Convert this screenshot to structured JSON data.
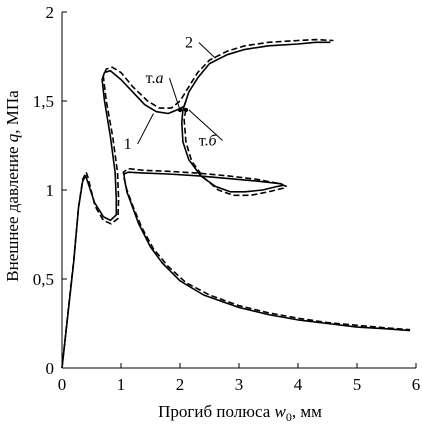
{
  "chart_data": {
    "type": "line",
    "title": "",
    "xlabel_main": "Прогиб полюса ",
    "xlabel_var": "w",
    "xlabel_sub": "0",
    "xlabel_unit": ", мм",
    "ylabel_main": "Внешнее давление ",
    "ylabel_var": "q",
    "ylabel_unit": ", МПа",
    "xlim": [
      0,
      6
    ],
    "ylim": [
      0,
      2
    ],
    "x_ticks": [
      {
        "value": 0,
        "label": "0"
      },
      {
        "value": 1,
        "label": "1"
      },
      {
        "value": 2,
        "label": "2"
      },
      {
        "value": 3,
        "label": "3"
      },
      {
        "value": 4,
        "label": "4"
      },
      {
        "value": 5,
        "label": "5"
      },
      {
        "value": 6,
        "label": "6"
      }
    ],
    "y_ticks": [
      {
        "value": 0,
        "label": "0"
      },
      {
        "value": 0.5,
        "label": "0,5"
      },
      {
        "value": 1,
        "label": "1"
      },
      {
        "value": 1.5,
        "label": "1,5"
      },
      {
        "value": 2,
        "label": "2"
      }
    ],
    "grid": false,
    "series": [
      {
        "name": "1",
        "style": "solid",
        "color": "#000000",
        "points": [
          [
            0,
            0
          ],
          [
            0.1,
            0.3
          ],
          [
            0.2,
            0.6
          ],
          [
            0.28,
            0.9
          ],
          [
            0.35,
            1.05
          ],
          [
            0.4,
            1.08
          ],
          [
            0.42,
            1.06
          ],
          [
            0.55,
            0.93
          ],
          [
            0.7,
            0.85
          ],
          [
            0.82,
            0.83
          ],
          [
            0.92,
            0.86
          ],
          [
            0.92,
            0.95
          ],
          [
            0.9,
            1.1
          ],
          [
            0.82,
            1.3
          ],
          [
            0.72,
            1.5
          ],
          [
            0.68,
            1.62
          ],
          [
            0.72,
            1.66
          ],
          [
            0.82,
            1.67
          ],
          [
            1.0,
            1.62
          ],
          [
            1.2,
            1.55
          ],
          [
            1.4,
            1.48
          ],
          [
            1.6,
            1.44
          ],
          [
            1.8,
            1.43
          ],
          [
            1.95,
            1.45
          ],
          [
            2.07,
            1.47
          ],
          [
            2.1,
            1.5
          ],
          [
            2.05,
            1.45
          ],
          [
            2.03,
            1.38
          ],
          [
            2.05,
            1.27
          ],
          [
            2.15,
            1.17
          ],
          [
            2.35,
            1.08
          ],
          [
            2.6,
            1.02
          ],
          [
            2.85,
            0.99
          ],
          [
            3.1,
            0.99
          ],
          [
            3.4,
            1.0
          ],
          [
            3.65,
            1.02
          ],
          [
            3.73,
            1.025
          ],
          [
            3.72,
            1.035
          ],
          [
            3.3,
            1.05
          ],
          [
            2.8,
            1.065
          ],
          [
            2.3,
            1.08
          ],
          [
            1.8,
            1.09
          ],
          [
            1.4,
            1.095
          ],
          [
            1.12,
            1.1
          ],
          [
            1.05,
            1.09
          ],
          [
            1.06,
            1.06
          ],
          [
            1.1,
            0.99
          ],
          [
            1.2,
            0.9
          ],
          [
            1.3,
            0.81
          ],
          [
            1.5,
            0.68
          ],
          [
            1.7,
            0.59
          ],
          [
            2.0,
            0.49
          ],
          [
            2.4,
            0.41
          ],
          [
            3.0,
            0.34
          ],
          [
            3.5,
            0.3
          ],
          [
            4.0,
            0.27
          ],
          [
            4.5,
            0.25
          ],
          [
            5.0,
            0.23
          ],
          [
            5.5,
            0.22
          ],
          [
            5.9,
            0.21
          ]
        ]
      },
      {
        "name": "2",
        "style": "dashed",
        "color": "#000000",
        "points": [
          [
            0,
            0
          ],
          [
            0.1,
            0.31
          ],
          [
            0.2,
            0.61
          ],
          [
            0.28,
            0.9
          ],
          [
            0.35,
            1.06
          ],
          [
            0.41,
            1.1
          ],
          [
            0.44,
            1.07
          ],
          [
            0.56,
            0.91
          ],
          [
            0.7,
            0.83
          ],
          [
            0.83,
            0.81
          ],
          [
            0.95,
            0.84
          ],
          [
            0.96,
            0.95
          ],
          [
            0.94,
            1.1
          ],
          [
            0.86,
            1.3
          ],
          [
            0.75,
            1.5
          ],
          [
            0.7,
            1.64
          ],
          [
            0.75,
            1.68
          ],
          [
            0.85,
            1.69
          ],
          [
            1.0,
            1.66
          ],
          [
            1.2,
            1.58
          ],
          [
            1.45,
            1.5
          ],
          [
            1.65,
            1.46
          ],
          [
            1.85,
            1.46
          ],
          [
            2.0,
            1.5
          ],
          [
            2.15,
            1.58
          ],
          [
            2.3,
            1.66
          ],
          [
            2.5,
            1.73
          ],
          [
            2.8,
            1.78
          ],
          [
            3.1,
            1.81
          ],
          [
            3.5,
            1.83
          ],
          [
            4.0,
            1.84
          ],
          [
            4.3,
            1.845
          ],
          [
            4.6,
            1.84
          ]
        ]
      },
      {
        "name": "1",
        "style": "solid",
        "color": "#000000",
        "points": [
          [
            2.07,
            1.47
          ],
          [
            2.15,
            1.55
          ],
          [
            2.3,
            1.63
          ],
          [
            2.5,
            1.71
          ],
          [
            2.8,
            1.76
          ],
          [
            3.1,
            1.79
          ],
          [
            3.5,
            1.81
          ],
          [
            4.0,
            1.82
          ],
          [
            4.3,
            1.83
          ],
          [
            4.55,
            1.83
          ]
        ]
      },
      {
        "name": "2",
        "style": "dashed",
        "color": "#000000",
        "points": [
          [
            2.1,
            1.45
          ],
          [
            2.07,
            1.4
          ],
          [
            2.1,
            1.27
          ],
          [
            2.2,
            1.16
          ],
          [
            2.4,
            1.07
          ],
          [
            2.65,
            1.0
          ],
          [
            2.9,
            0.97
          ],
          [
            3.2,
            0.97
          ],
          [
            3.5,
            0.99
          ],
          [
            3.75,
            1.01
          ],
          [
            3.8,
            1.02
          ],
          [
            3.7,
            1.035
          ],
          [
            3.3,
            1.06
          ],
          [
            2.8,
            1.08
          ],
          [
            2.3,
            1.095
          ],
          [
            1.8,
            1.105
          ],
          [
            1.4,
            1.11
          ],
          [
            1.12,
            1.12
          ],
          [
            1.04,
            1.1
          ],
          [
            1.05,
            1.07
          ],
          [
            1.1,
            1.0
          ],
          [
            1.2,
            0.91
          ],
          [
            1.35,
            0.79
          ],
          [
            1.55,
            0.67
          ],
          [
            1.8,
            0.57
          ],
          [
            2.1,
            0.48
          ],
          [
            2.5,
            0.41
          ],
          [
            3.0,
            0.35
          ],
          [
            3.5,
            0.31
          ],
          [
            4.0,
            0.28
          ],
          [
            4.5,
            0.255
          ],
          [
            5.0,
            0.24
          ],
          [
            5.5,
            0.225
          ],
          [
            5.9,
            0.215
          ]
        ]
      }
    ],
    "annotations": [
      {
        "id": "label-1",
        "text": "1",
        "text_at": [
          1.18,
          1.23
        ],
        "arrow_to": [
          1.55,
          1.43
        ]
      },
      {
        "id": "label-2",
        "text": "2",
        "text_at": [
          2.22,
          1.8
        ],
        "arrow_to": [
          2.6,
          1.74
        ]
      },
      {
        "id": "label-ta",
        "text_plain": "т.",
        "text_italic": "a",
        "text_at": [
          1.72,
          1.6
        ],
        "arrow_to": [
          2.0,
          1.45
        ]
      },
      {
        "id": "label-tb",
        "text_plain": "т.",
        "text_italic": "б",
        "text_at": [
          2.62,
          1.25
        ],
        "arrow_to": [
          2.15,
          1.45
        ]
      }
    ],
    "points_marked": [
      {
        "id": "point-a",
        "x": 2.0,
        "y": 1.45
      },
      {
        "id": "point-b",
        "x": 2.1,
        "y": 1.45
      }
    ]
  }
}
